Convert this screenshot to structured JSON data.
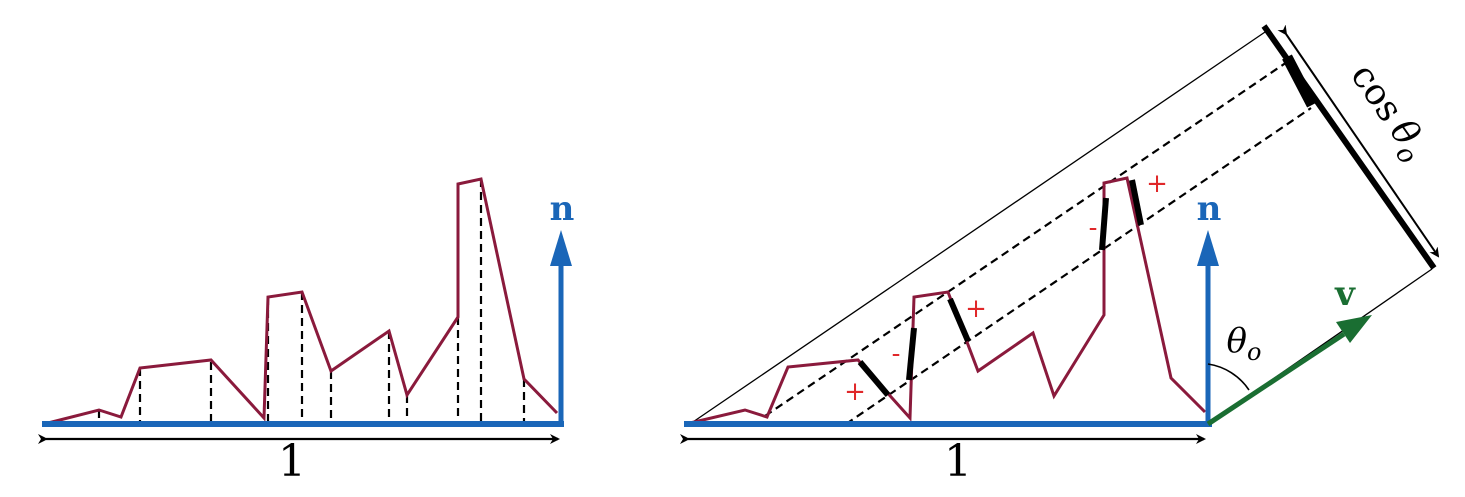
{
  "left_panel": {
    "baseline_length_label": "1",
    "normal_label": "n"
  },
  "right_panel": {
    "baseline_length_label": "1",
    "normal_label": "n",
    "view_label": "v",
    "angle_label_base": "θ",
    "angle_label_sub": "o",
    "projected_length_prefix": "cos",
    "projected_length_theta": "θ",
    "projected_length_sub": "o",
    "signs": [
      "+",
      "-",
      "+",
      "-",
      "+"
    ]
  },
  "colors": {
    "microsurface": "#8a1a3c",
    "normal": "#1a66b8",
    "view": "#1a6e32",
    "sign": "#e0282a",
    "ink": "#000000"
  }
}
